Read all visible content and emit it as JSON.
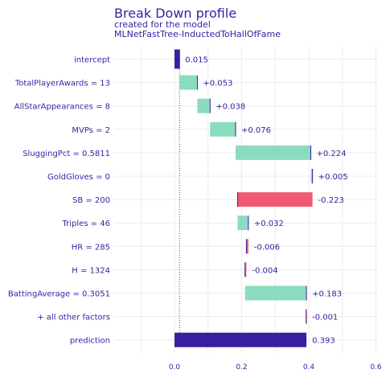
{
  "chart_data": {
    "type": "waterfall",
    "title": "Break Down profile",
    "subtitle_line1": "created for the  model",
    "subtitle_line2": "MLNetFastTree-InductedToHallOfFame",
    "x_ticks": [
      "0.0",
      "0.2",
      "0.4",
      "0.6"
    ],
    "xlim": [
      -0.16,
      0.6
    ],
    "colors": {
      "positive": "#8bdcbe",
      "negative": "#f05a71",
      "prediction": "#371ea3",
      "text": "#371ea3",
      "grid": "#ececec",
      "connector": "#371ea3"
    },
    "rows": [
      {
        "label": "intercept",
        "value": 0.015,
        "value_label": "0.015",
        "kind": "intercept"
      },
      {
        "label": "TotalPlayerAwards = 13",
        "value": 0.053,
        "value_label": "+0.053",
        "kind": "positive"
      },
      {
        "label": "AllStarAppearances = 8",
        "value": 0.038,
        "value_label": "+0.038",
        "kind": "positive"
      },
      {
        "label": "MVPs = 2",
        "value": 0.076,
        "value_label": "+0.076",
        "kind": "positive"
      },
      {
        "label": "SluggingPct = 0.5811",
        "value": 0.224,
        "value_label": "+0.224",
        "kind": "positive"
      },
      {
        "label": "GoldGloves = 0",
        "value": 0.005,
        "value_label": "+0.005",
        "kind": "positive"
      },
      {
        "label": "SB = 200",
        "value": -0.223,
        "value_label": "-0.223",
        "kind": "negative"
      },
      {
        "label": "Triples = 46",
        "value": 0.032,
        "value_label": "+0.032",
        "kind": "positive"
      },
      {
        "label": "HR = 285",
        "value": -0.006,
        "value_label": "-0.006",
        "kind": "negative"
      },
      {
        "label": "H = 1324",
        "value": -0.004,
        "value_label": "-0.004",
        "kind": "negative"
      },
      {
        "label": "BattingAverage = 0.3051",
        "value": 0.183,
        "value_label": "+0.183",
        "kind": "positive"
      },
      {
        "label": "+ all other factors",
        "value": -0.001,
        "value_label": "-0.001",
        "kind": "negative"
      },
      {
        "label": "prediction",
        "value": 0.393,
        "value_label": "0.393",
        "kind": "prediction"
      }
    ]
  }
}
